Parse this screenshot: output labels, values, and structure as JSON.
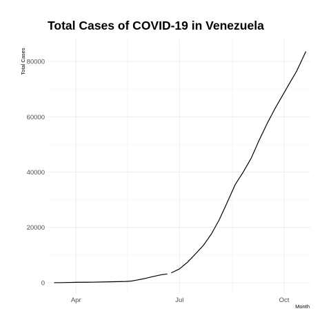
{
  "chart_data": {
    "type": "line",
    "title": "Total Cases of COVID-19 in Venezuela",
    "xlabel": "Month",
    "ylabel": "Total Cases",
    "x_tick_labels": [
      "Apr",
      "Jul",
      "Oct"
    ],
    "x_tick_dates": [
      "2020-04-01",
      "2020-07-01",
      "2020-10-01"
    ],
    "x_minor_dates": [
      "2020-05-16",
      "2020-08-16"
    ],
    "y_ticks": [
      0,
      20000,
      40000,
      60000,
      80000
    ],
    "y_minor_ticks": [
      10000,
      30000,
      50000,
      70000
    ],
    "y_tick_labels": [
      "0",
      "20000",
      "40000",
      "60000",
      "80000"
    ],
    "xlim": [
      "2020-03-07",
      "2020-10-24"
    ],
    "ylim": [
      -4000,
      88000
    ],
    "grid": true,
    "legend": "none",
    "series": [
      {
        "values": [
          {
            "x": "2020-03-13",
            "y": 2
          },
          {
            "x": "2020-03-20",
            "y": 42
          },
          {
            "x": "2020-04-01",
            "y": 143
          },
          {
            "x": "2020-04-15",
            "y": 197
          },
          {
            "x": "2020-05-01",
            "y": 335
          },
          {
            "x": "2020-05-15",
            "y": 459
          },
          {
            "x": "2020-05-20",
            "y": 618
          },
          {
            "x": "2020-05-25",
            "y": 1010
          },
          {
            "x": "2020-05-31",
            "y": 1459
          },
          {
            "x": "2020-06-07",
            "y": 2145
          },
          {
            "x": "2020-06-15",
            "y": 2879
          },
          {
            "x": "2020-06-20",
            "y": 3150
          },
          {
            "x": "2020-06-24",
            "y": null
          },
          {
            "x": "2020-06-24",
            "y": 3600
          },
          {
            "x": "2020-07-01",
            "y": 5000
          },
          {
            "x": "2020-07-08",
            "y": 7400
          },
          {
            "x": "2020-07-15",
            "y": 10400
          },
          {
            "x": "2020-07-22",
            "y": 13500
          },
          {
            "x": "2020-07-29",
            "y": 17600
          },
          {
            "x": "2020-08-05",
            "y": 22800
          },
          {
            "x": "2020-08-12",
            "y": 29100
          },
          {
            "x": "2020-08-19",
            "y": 35500
          },
          {
            "x": "2020-08-26",
            "y": 40000
          },
          {
            "x": "2020-09-02",
            "y": 45000
          },
          {
            "x": "2020-09-09",
            "y": 51500
          },
          {
            "x": "2020-09-16",
            "y": 57500
          },
          {
            "x": "2020-09-23",
            "y": 63000
          },
          {
            "x": "2020-09-30",
            "y": 68000
          },
          {
            "x": "2020-10-07",
            "y": 73000
          },
          {
            "x": "2020-10-12",
            "y": 76500
          },
          {
            "x": "2020-10-20",
            "y": 83500
          }
        ]
      }
    ]
  }
}
